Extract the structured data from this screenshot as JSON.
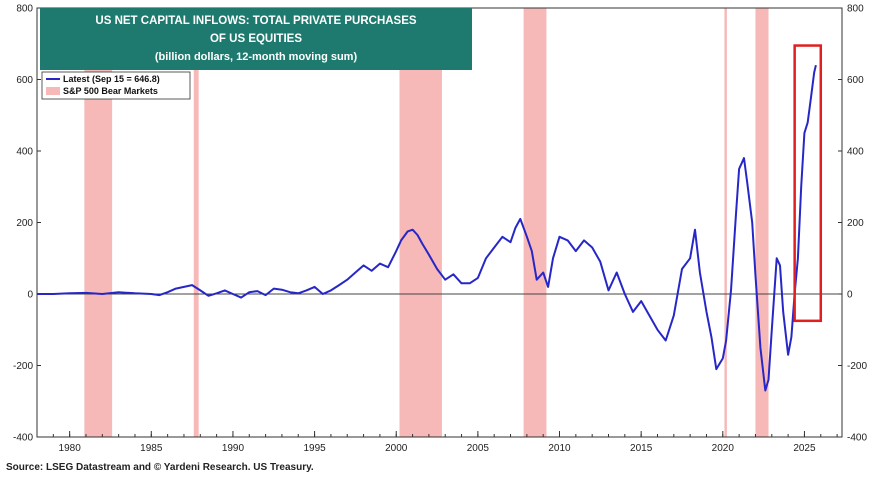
{
  "chart_data": {
    "type": "line",
    "title": [
      "US NET CAPITAL INFLOWS: TOTAL PRIVATE PURCHASES",
      "OF US EQUITIES"
    ],
    "subtitle": "(billion dollars, 12-month moving sum)",
    "xlabel": "",
    "ylabel": "",
    "xlim": [
      1978,
      2027.3
    ],
    "ylim": [
      -400,
      800
    ],
    "yticks": [
      -400,
      -200,
      0,
      200,
      400,
      600,
      800
    ],
    "xtick_labels": [
      "1980",
      "1985",
      "1990",
      "1995",
      "2000",
      "2005",
      "2010",
      "2015",
      "2020",
      "2025"
    ],
    "xtick_values": [
      1980,
      1985,
      1990,
      1995,
      2000,
      2005,
      2010,
      2015,
      2020,
      2025
    ],
    "grid": false,
    "legend_position": "top-left",
    "colors": {
      "line": "#2727c8",
      "bear": "#f7b8b8",
      "title_bg": "#1e7a6e",
      "highlight": "#e02020",
      "zero": "#444444"
    },
    "legend": [
      {
        "label": "Latest (Sep 15 = 646.8)",
        "kind": "line"
      },
      {
        "label": "S&P 500 Bear Markets",
        "kind": "band"
      }
    ],
    "bear_markets": [
      [
        1980.9,
        1982.6
      ],
      [
        1987.6,
        1987.9
      ],
      [
        2000.2,
        2002.8
      ],
      [
        2007.8,
        2009.2
      ],
      [
        2020.1,
        2020.25
      ],
      [
        2022.0,
        2022.8
      ]
    ],
    "highlight_box": {
      "x0": 2024.4,
      "x1": 2026.0,
      "y0": -75,
      "y1": 695
    },
    "series": [
      {
        "name": "Latest (Sep 15 = 646.8)",
        "x": [
          1978,
          1979,
          1980,
          1981,
          1982,
          1983,
          1984,
          1985,
          1985.5,
          1986,
          1986.5,
          1987,
          1987.5,
          1988,
          1988.5,
          1989,
          1989.5,
          1990,
          1990.5,
          1991,
          1991.5,
          1992,
          1992.5,
          1993,
          1993.5,
          1994,
          1994.5,
          1995,
          1995.5,
          1996,
          1996.5,
          1997,
          1997.5,
          1998,
          1998.5,
          1999,
          1999.5,
          2000,
          2000.3,
          2000.7,
          2001,
          2001.3,
          2001.6,
          2002,
          2002.5,
          2003,
          2003.5,
          2004,
          2004.5,
          2005,
          2005.5,
          2006,
          2006.5,
          2007,
          2007.3,
          2007.6,
          2008,
          2008.3,
          2008.6,
          2009,
          2009.3,
          2009.6,
          2010,
          2010.5,
          2011,
          2011.5,
          2012,
          2012.5,
          2013,
          2013.5,
          2014,
          2014.5,
          2015,
          2015.5,
          2016,
          2016.5,
          2017,
          2017.5,
          2018,
          2018.3,
          2018.6,
          2019,
          2019.3,
          2019.6,
          2020,
          2020.2,
          2020.5,
          2020.8,
          2021,
          2021.3,
          2021.5,
          2021.8,
          2022,
          2022.3,
          2022.6,
          2022.8,
          2023,
          2023.3,
          2023.5,
          2023.7,
          2024,
          2024.2,
          2024.4,
          2024.6,
          2024.8,
          2025,
          2025.2,
          2025.4,
          2025.6,
          2025.7
        ],
        "values": [
          0,
          0,
          2,
          3,
          0,
          5,
          2,
          0,
          -3,
          5,
          15,
          20,
          25,
          10,
          -5,
          2,
          10,
          0,
          -10,
          5,
          8,
          -3,
          15,
          12,
          5,
          2,
          10,
          20,
          0,
          10,
          25,
          40,
          60,
          80,
          65,
          85,
          75,
          120,
          150,
          175,
          180,
          165,
          140,
          110,
          70,
          40,
          55,
          30,
          30,
          45,
          100,
          130,
          160,
          145,
          185,
          210,
          160,
          120,
          40,
          60,
          20,
          100,
          160,
          150,
          120,
          150,
          130,
          90,
          10,
          60,
          0,
          -50,
          -20,
          -60,
          -100,
          -130,
          -60,
          70,
          100,
          180,
          60,
          -50,
          -120,
          -210,
          -180,
          -130,
          10,
          220,
          350,
          380,
          310,
          200,
          50,
          -150,
          -270,
          -240,
          -100,
          100,
          80,
          -50,
          -170,
          -120,
          0,
          100,
          300,
          450,
          480,
          550,
          620,
          640
        ]
      }
    ],
    "axis_labels": {
      "left": true,
      "right": true
    }
  },
  "source": "Source: LSEG Datastream and © Yardeni Research. US Treasury."
}
